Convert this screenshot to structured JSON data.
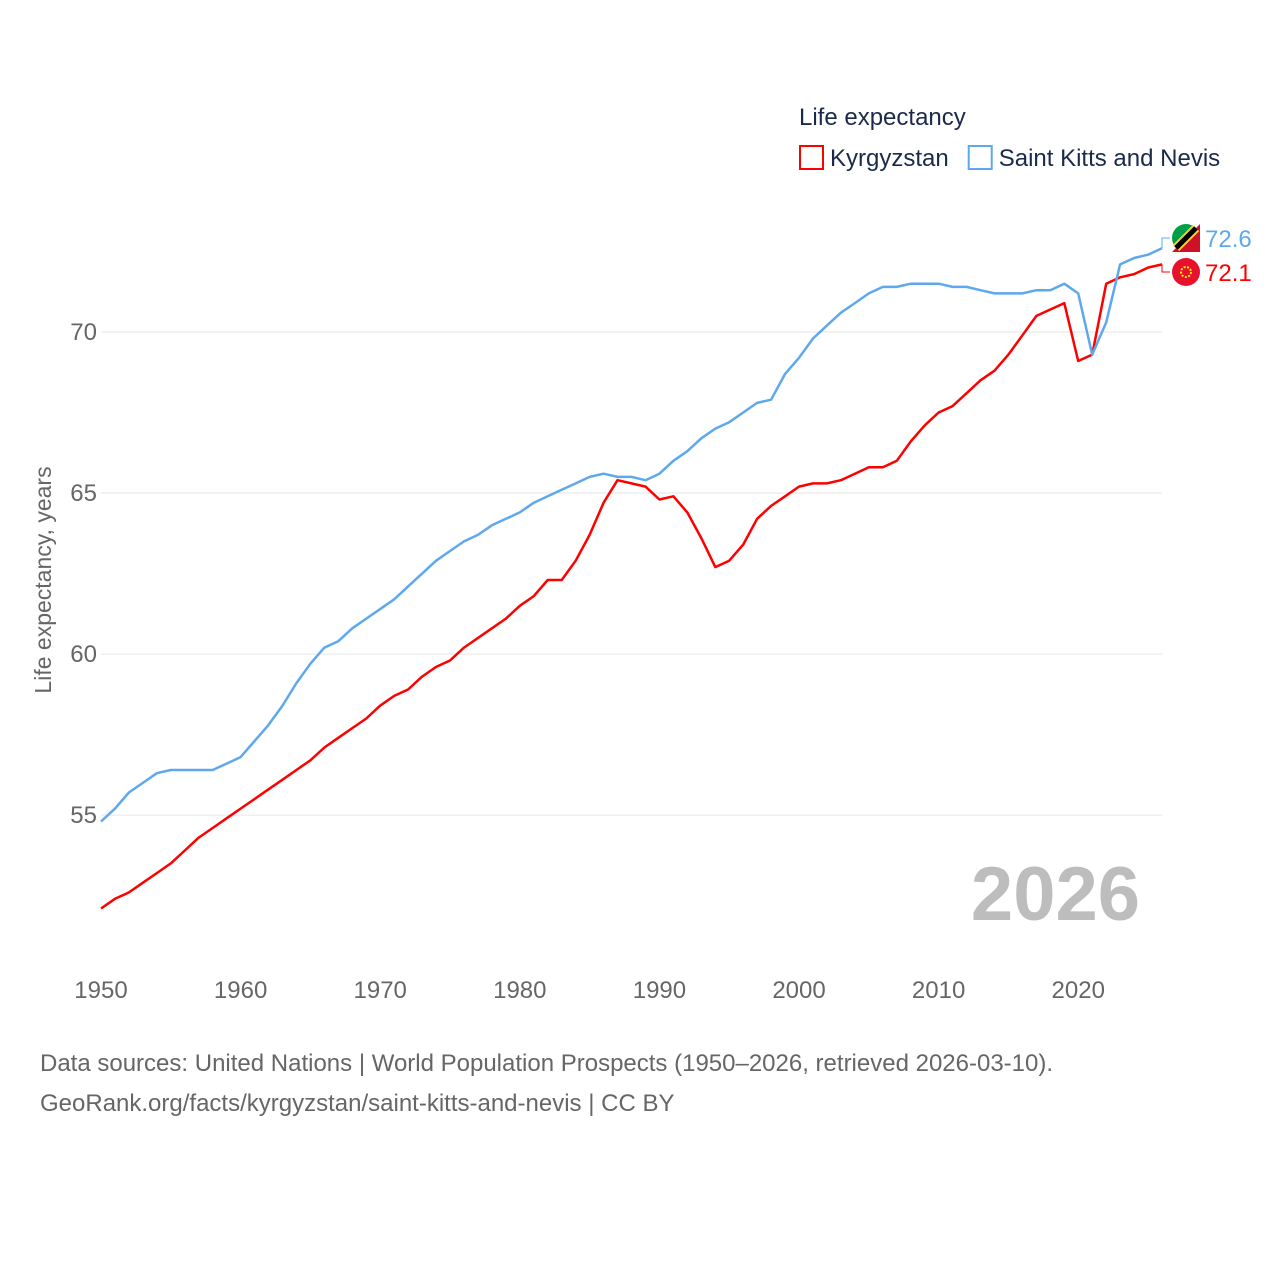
{
  "chart_data": {
    "type": "line",
    "title": "",
    "legend_title": "Life expectancy",
    "legend_position": "top-right",
    "xlabel": "",
    "ylabel": "Life expectancy, years",
    "xlim": [
      1950,
      2026
    ],
    "ylim": [
      50.5,
      74.1
    ],
    "x_ticks": [
      1950,
      1960,
      1970,
      1980,
      1990,
      2000,
      2010,
      2020
    ],
    "y_ticks": [
      55,
      60,
      65,
      70
    ],
    "grid": "horizontal",
    "year_watermark": "2026",
    "x": [
      1950,
      1951,
      1952,
      1953,
      1954,
      1955,
      1956,
      1957,
      1958,
      1959,
      1960,
      1961,
      1962,
      1963,
      1964,
      1965,
      1966,
      1967,
      1968,
      1969,
      1970,
      1971,
      1972,
      1973,
      1974,
      1975,
      1976,
      1977,
      1978,
      1979,
      1980,
      1981,
      1982,
      1983,
      1984,
      1985,
      1986,
      1987,
      1988,
      1989,
      1990,
      1991,
      1992,
      1993,
      1994,
      1995,
      1996,
      1997,
      1998,
      1999,
      2000,
      2001,
      2002,
      2003,
      2004,
      2005,
      2006,
      2007,
      2008,
      2009,
      2010,
      2011,
      2012,
      2013,
      2014,
      2015,
      2016,
      2017,
      2018,
      2019,
      2020,
      2021,
      2022,
      2023,
      2024,
      2025,
      2026
    ],
    "series": [
      {
        "name": "Kyrgyzstan",
        "color": "#ff0000",
        "end_label": "72.1",
        "flag": "kyrgyzstan-flag",
        "values": [
          52.1,
          52.4,
          52.6,
          52.9,
          53.2,
          53.5,
          53.9,
          54.3,
          54.6,
          54.9,
          55.2,
          55.5,
          55.8,
          56.1,
          56.4,
          56.7,
          57.1,
          57.4,
          57.7,
          58.0,
          58.4,
          58.7,
          58.9,
          59.3,
          59.6,
          59.8,
          60.2,
          60.5,
          60.8,
          61.1,
          61.5,
          61.8,
          62.3,
          62.3,
          62.9,
          63.7,
          64.7,
          65.4,
          65.3,
          65.2,
          64.8,
          64.9,
          64.4,
          63.6,
          62.7,
          62.9,
          63.4,
          64.2,
          64.6,
          64.9,
          65.2,
          65.3,
          65.3,
          65.4,
          65.6,
          65.8,
          65.8,
          66.0,
          66.6,
          67.1,
          67.5,
          67.7,
          68.1,
          68.5,
          68.8,
          69.3,
          69.9,
          70.5,
          70.7,
          70.9,
          69.1,
          69.3,
          71.5,
          71.7,
          71.8,
          72.0,
          72.1
        ]
      },
      {
        "name": "Saint Kitts and Nevis",
        "color": "#5ea8ee",
        "end_label": "72.6",
        "flag": "saint-kitts-and-nevis-flag",
        "values": [
          54.8,
          55.2,
          55.7,
          56.0,
          56.3,
          56.4,
          56.4,
          56.4,
          56.4,
          56.6,
          56.8,
          57.3,
          57.8,
          58.4,
          59.1,
          59.7,
          60.2,
          60.4,
          60.8,
          61.1,
          61.4,
          61.7,
          62.1,
          62.5,
          62.9,
          63.2,
          63.5,
          63.7,
          64.0,
          64.2,
          64.4,
          64.7,
          64.9,
          65.1,
          65.3,
          65.5,
          65.6,
          65.5,
          65.5,
          65.4,
          65.6,
          66.0,
          66.3,
          66.7,
          67.0,
          67.2,
          67.5,
          67.8,
          67.9,
          68.7,
          69.2,
          69.8,
          70.2,
          70.6,
          70.9,
          71.2,
          71.4,
          71.4,
          71.5,
          71.5,
          71.5,
          71.4,
          71.4,
          71.3,
          71.2,
          71.2,
          71.2,
          71.3,
          71.3,
          71.5,
          71.2,
          69.3,
          70.3,
          72.1,
          72.3,
          72.4,
          72.6
        ]
      }
    ]
  },
  "footer": {
    "line1": "Data sources: United Nations | World Population Prospects (1950–2026, retrieved 2026-03-10).",
    "line2": "GeoRank.org/facts/kyrgyzstan/saint-kitts-and-nevis | CC BY"
  }
}
